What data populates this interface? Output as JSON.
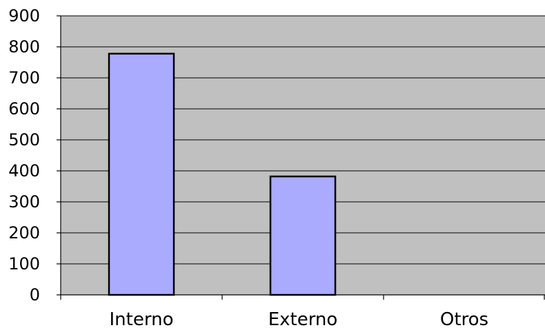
{
  "chart_data": {
    "type": "bar",
    "title": "",
    "xlabel": "",
    "ylabel": "",
    "categories": [
      "Interno",
      "Externo",
      "Otros"
    ],
    "values": [
      778,
      382,
      0
    ],
    "ylim": [
      0,
      900
    ],
    "yticks": [
      0,
      100,
      200,
      300,
      400,
      500,
      600,
      700,
      800,
      900
    ],
    "grid": true,
    "legend": "none",
    "colors": {
      "bar_fill": "#aaaaff",
      "bar_stroke": "#000000",
      "plot_background": "#c0c0c0",
      "gridline": "#000000"
    }
  }
}
